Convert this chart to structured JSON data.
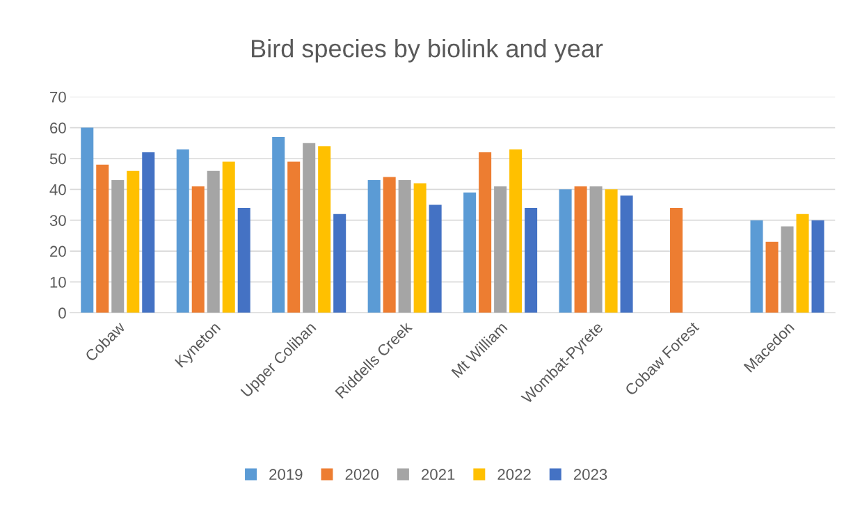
{
  "chart_data": {
    "type": "bar",
    "title": "Bird species by biolink and year",
    "categories": [
      "Cobaw",
      "Kyneton",
      "Upper Coliban",
      "Riddells Creek",
      "Mt William",
      "Wombat-Pyrete",
      "Cobaw Forest",
      "Macedon"
    ],
    "series": [
      {
        "name": "2019",
        "color": "#5b9bd5",
        "values": [
          60,
          53,
          57,
          43,
          39,
          40,
          null,
          30
        ]
      },
      {
        "name": "2020",
        "color": "#ed7d31",
        "values": [
          48,
          41,
          49,
          44,
          52,
          41,
          34,
          23
        ]
      },
      {
        "name": "2021",
        "color": "#a5a5a5",
        "values": [
          43,
          46,
          55,
          43,
          41,
          41,
          null,
          28
        ]
      },
      {
        "name": "2022",
        "color": "#ffc000",
        "values": [
          46,
          49,
          54,
          42,
          53,
          40,
          null,
          32
        ]
      },
      {
        "name": "2023",
        "color": "#4472c4",
        "values": [
          52,
          34,
          32,
          35,
          34,
          38,
          null,
          30
        ]
      }
    ],
    "ylim": [
      0,
      70
    ],
    "yticks": [
      0,
      10,
      20,
      30,
      40,
      50,
      60,
      70
    ],
    "grid": "y",
    "legend": "bottom"
  }
}
